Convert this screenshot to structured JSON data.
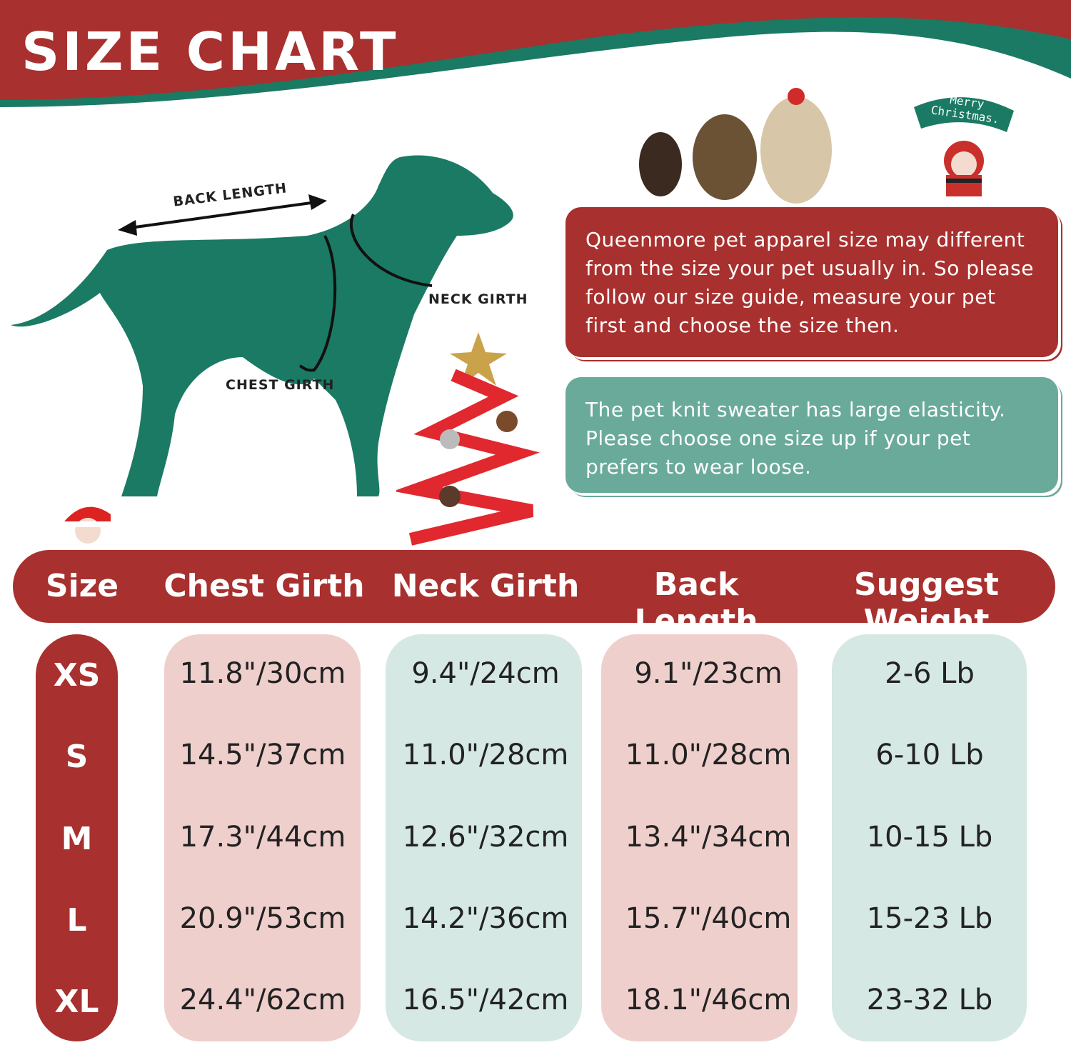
{
  "header": {
    "title": "SIZE CHART"
  },
  "diagram": {
    "back_length_label": "BACK LENGTH",
    "neck_girth_label": "NECK GIRTH",
    "chest_girth_label": "CHEST GIRTH"
  },
  "banner": {
    "text": "Merry Christmas."
  },
  "notes": {
    "apparel_note": "Queenmore pet apparel size may different from the size your pet usually in. So please follow our size guide, measure your pet first and choose the size then.",
    "elasticity_note": "The pet knit sweater has large elasticity. Please choose one size up if your pet prefers to wear loose."
  },
  "table": {
    "columns": [
      "Size",
      "Chest Girth",
      "Neck Girth",
      "Back Length",
      "Suggest Weight"
    ],
    "rows": [
      [
        "XS",
        "11.8\"/30cm",
        "9.4\"/24cm",
        "9.1\"/23cm",
        "2-6 Lb"
      ],
      [
        "S",
        "14.5\"/37cm",
        "11.0\"/28cm",
        "11.0\"/28cm",
        "6-10 Lb"
      ],
      [
        "M",
        "17.3\"/44cm",
        "12.6\"/32cm",
        "13.4\"/34cm",
        "10-15 Lb"
      ],
      [
        "L",
        "20.9\"/53cm",
        "14.2\"/36cm",
        "15.7\"/40cm",
        "15-23 Lb"
      ],
      [
        "XL",
        "24.4\"/62cm",
        "16.5\"/42cm",
        "18.1\"/46cm",
        "23-32 Lb"
      ]
    ]
  },
  "colors": {
    "red": "#a8302e",
    "green": "#1b7a64",
    "teal": "#6aaa9a",
    "pink_cell": "#efcfcc",
    "teal_cell": "#d5e8e3"
  }
}
